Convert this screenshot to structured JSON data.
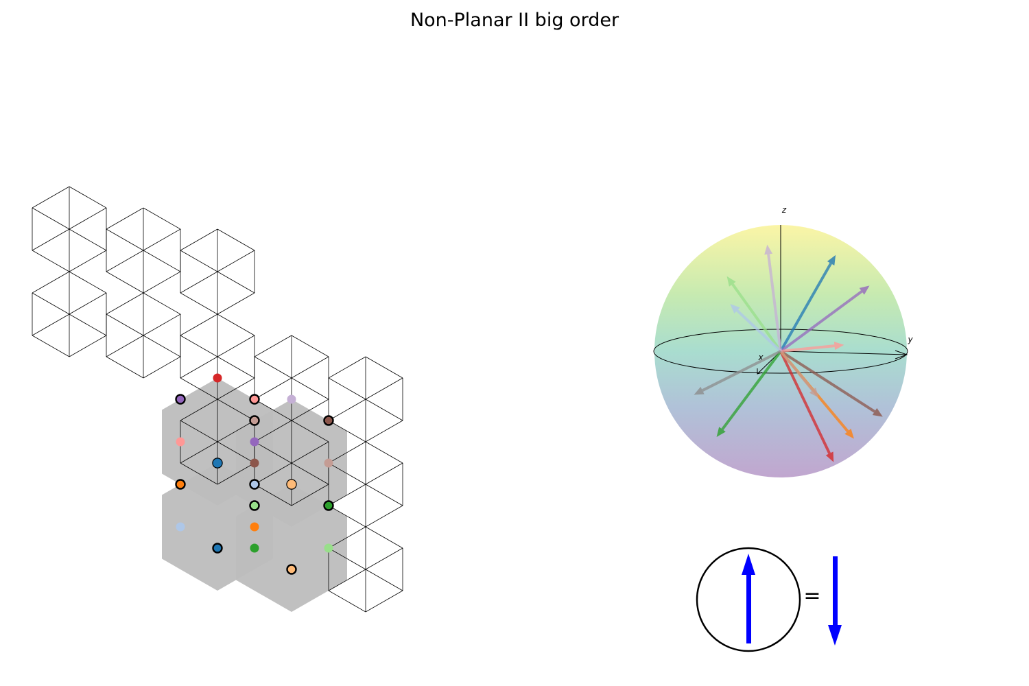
{
  "title": "Non-Planar II big order",
  "lattice": {
    "line_color": "#000000",
    "shade_color": "#bdbdbd",
    "shaded_cells": [
      [
        2,
        2
      ],
      [
        3,
        2
      ],
      [
        2,
        3
      ],
      [
        3,
        3
      ]
    ],
    "sites": [
      {
        "c": 2,
        "r": 2,
        "k": 0,
        "color": "#d62728",
        "ring": false
      },
      {
        "c": 2,
        "r": 2,
        "k": 1,
        "color": "#ff9896",
        "ring": true
      },
      {
        "c": 2,
        "r": 2,
        "k": 2,
        "color": "#9467bd",
        "ring": false
      },
      {
        "c": 2,
        "r": 2,
        "k": 3,
        "color": "#d62728",
        "ring": true
      },
      {
        "c": 2,
        "r": 2,
        "k": 4,
        "color": "#ff9896",
        "ring": false
      },
      {
        "c": 2,
        "r": 2,
        "k": 5,
        "color": "#9467bd",
        "ring": true
      },
      {
        "c": 3,
        "r": 2,
        "k": 0,
        "color": "#c5b0d5",
        "ring": false
      },
      {
        "c": 3,
        "r": 2,
        "k": 1,
        "color": "#8c564b",
        "ring": true
      },
      {
        "c": 3,
        "r": 2,
        "k": 2,
        "color": "#c49c94",
        "ring": false
      },
      {
        "c": 3,
        "r": 2,
        "k": 3,
        "color": "#c5b0d5",
        "ring": true
      },
      {
        "c": 3,
        "r": 2,
        "k": 4,
        "color": "#8c564b",
        "ring": false
      },
      {
        "c": 3,
        "r": 2,
        "k": 5,
        "color": "#c49c94",
        "ring": true
      },
      {
        "c": 2,
        "r": 3,
        "k": 0,
        "color": "#1f77b4",
        "ring": false
      },
      {
        "c": 2,
        "r": 3,
        "k": 1,
        "color": "#aec7e8",
        "ring": true
      },
      {
        "c": 2,
        "r": 3,
        "k": 2,
        "color": "#ff7f0e",
        "ring": false
      },
      {
        "c": 2,
        "r": 3,
        "k": 3,
        "color": "#1f77b4",
        "ring": true
      },
      {
        "c": 2,
        "r": 3,
        "k": 4,
        "color": "#aec7e8",
        "ring": false
      },
      {
        "c": 2,
        "r": 3,
        "k": 5,
        "color": "#ff7f0e",
        "ring": true
      },
      {
        "c": 3,
        "r": 3,
        "k": 0,
        "color": "#ffbb78",
        "ring": false
      },
      {
        "c": 3,
        "r": 3,
        "k": 1,
        "color": "#2ca02c",
        "ring": true
      },
      {
        "c": 3,
        "r": 3,
        "k": 2,
        "color": "#98df8a",
        "ring": false
      },
      {
        "c": 3,
        "r": 3,
        "k": 3,
        "color": "#ffbb78",
        "ring": true
      },
      {
        "c": 3,
        "r": 3,
        "k": 4,
        "color": "#2ca02c",
        "ring": false
      },
      {
        "c": 3,
        "r": 3,
        "k": 5,
        "color": "#98df8a",
        "ring": true
      }
    ]
  },
  "sphere": {
    "axis_labels": {
      "x": "x",
      "y": "y",
      "z": "z"
    },
    "vectors": [
      {
        "color": "#8c564b",
        "theta": 120,
        "phi": 80
      },
      {
        "color": "#2ca02c",
        "theta": 138,
        "phi": 240
      },
      {
        "color": "#d62728",
        "theta": 155,
        "phi": 105
      },
      {
        "color": "#ff7f0e",
        "theta": 130,
        "phi": 60
      },
      {
        "color": "#1f77b4",
        "theta": 35,
        "phi": 60
      },
      {
        "color": "#9467bd",
        "theta": 55,
        "phi": 70
      },
      {
        "color": "#98df8a",
        "theta": 60,
        "phi": 220
      },
      {
        "color": "#aec7e8",
        "theta": 75,
        "phi": 215
      },
      {
        "color": "#ff9896",
        "theta": 95,
        "phi": 160
      },
      {
        "color": "#c5b0d5",
        "theta": 40,
        "phi": 200
      },
      {
        "color": "#c49c94",
        "theta": 120,
        "phi": 170
      },
      {
        "color": "#8c8c8c",
        "theta": 115,
        "phi": 240
      }
    ]
  },
  "legend": {
    "equals": "=",
    "color": "#0000ff"
  }
}
